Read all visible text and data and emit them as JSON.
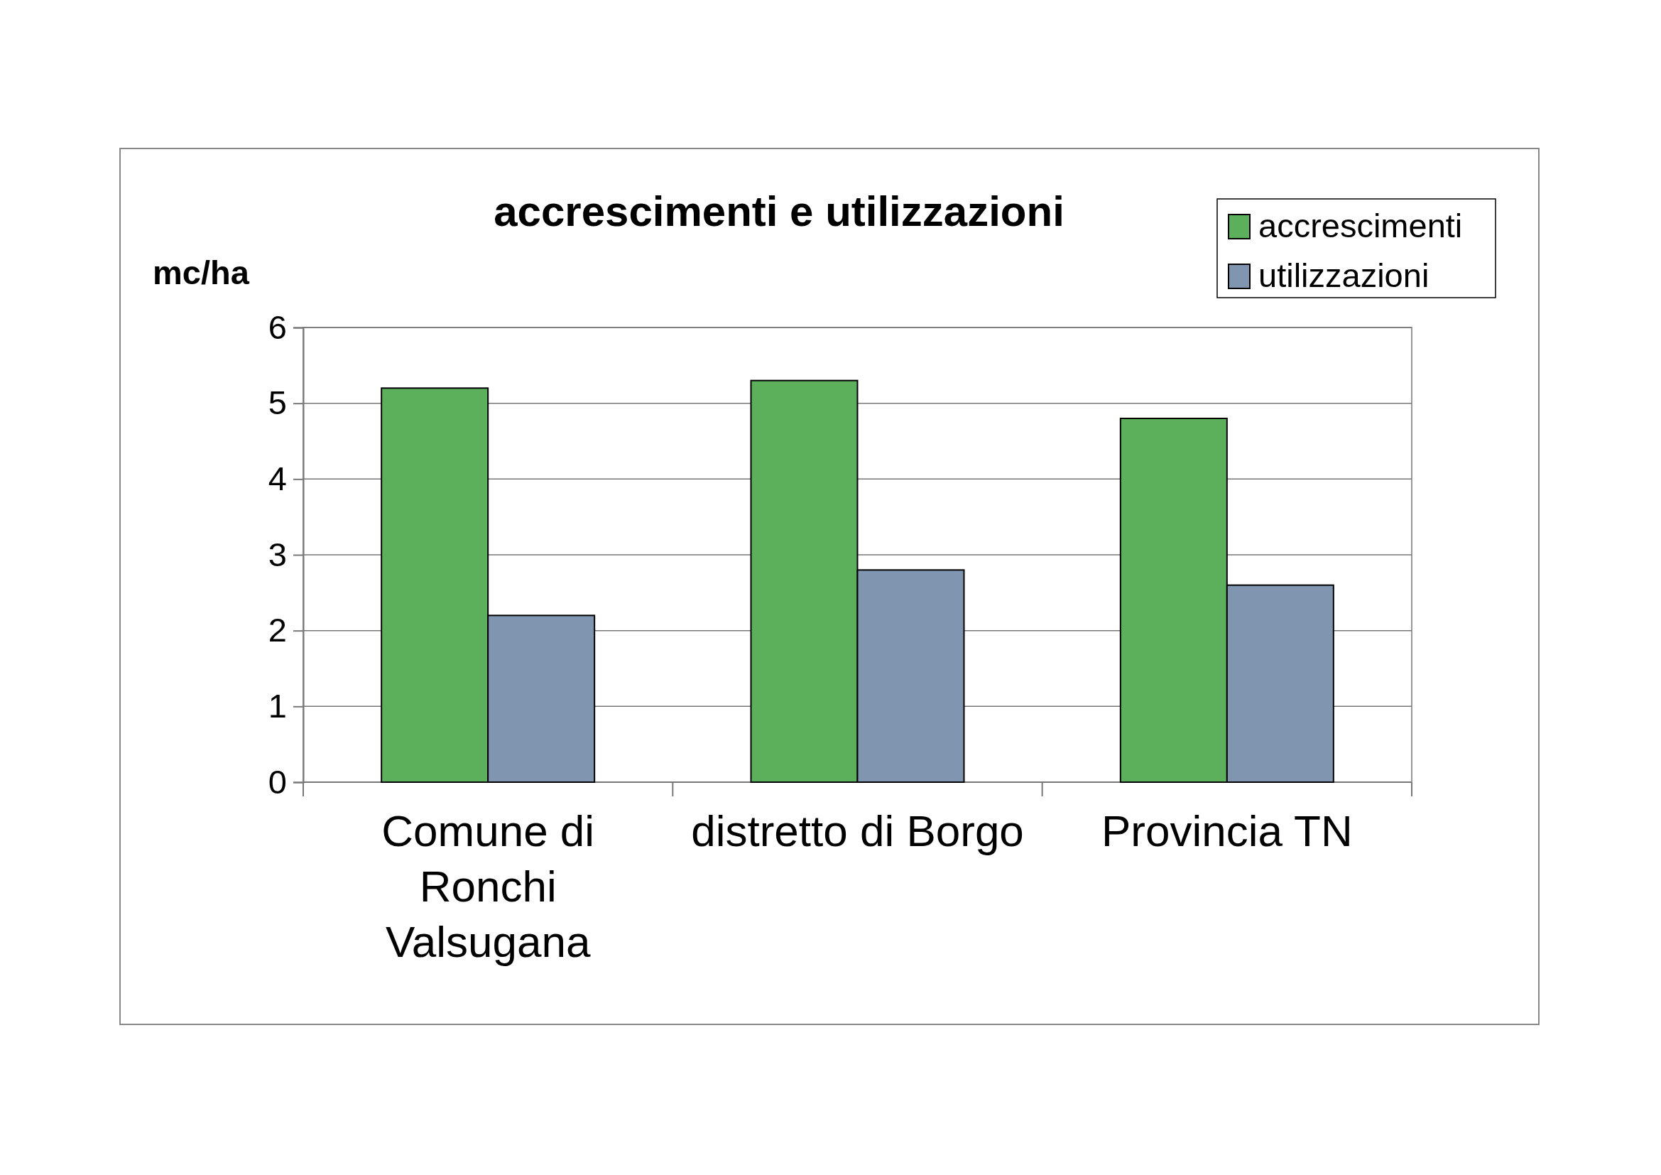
{
  "chart_data": {
    "type": "bar",
    "title": "accrescimenti e utilizzazioni",
    "ylabel": "mc/ha",
    "categories": [
      "Comune di Ronchi Valsugana",
      "distretto di Borgo",
      "Provincia TN"
    ],
    "series": [
      {
        "name": "accrescimenti",
        "color": "#5cb05c",
        "values": [
          5.2,
          5.3,
          4.8
        ]
      },
      {
        "name": "utilizzazioni",
        "color": "#7f95b0",
        "values": [
          2.2,
          2.8,
          2.6
        ]
      }
    ],
    "ylim": [
      0,
      6
    ],
    "yticks": [
      0,
      1,
      2,
      3,
      4,
      5,
      6
    ],
    "grid": "y",
    "legend": "top right"
  }
}
